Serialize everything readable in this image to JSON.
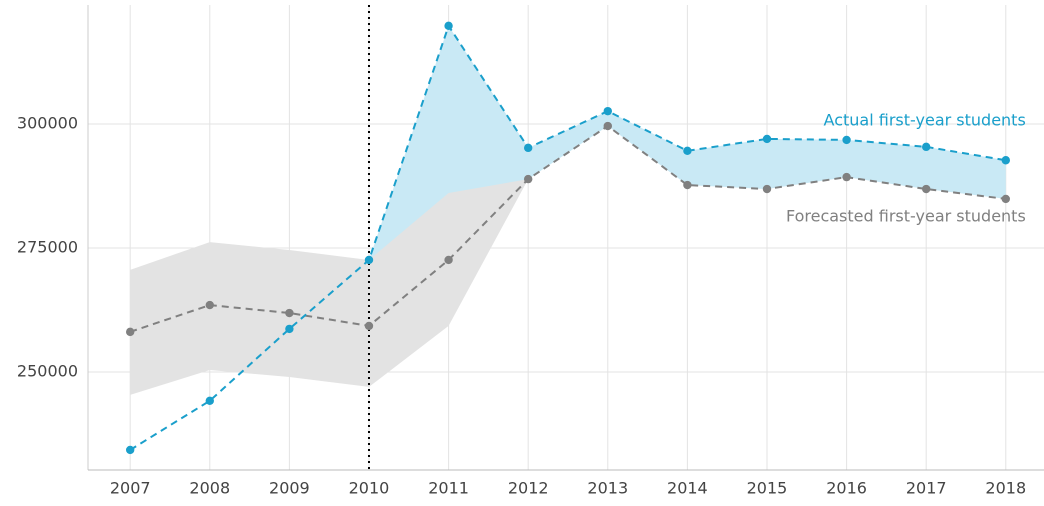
{
  "chart_data": {
    "type": "line",
    "x": [
      2007,
      2008,
      2009,
      2010,
      2011,
      2012,
      2013,
      2014,
      2015,
      2016,
      2017,
      2018
    ],
    "series": [
      {
        "name": "Actual first-year students",
        "color": "#1a9fcb",
        "values": [
          234300,
          244200,
          258700,
          272600,
          319800,
          295200,
          302600,
          294600,
          297000,
          296800,
          295400,
          292700
        ]
      },
      {
        "name": "Forecasted first-year students",
        "color": "#808080",
        "values": [
          258100,
          263500,
          261900,
          259300,
          272600,
          288900,
          299600,
          287700,
          286900,
          289300,
          286900,
          284900
        ]
      }
    ],
    "band": {
      "color": "#e3e3e3",
      "upper": [
        270600,
        276200,
        274600,
        272600,
        286100,
        288900,
        null,
        null,
        null,
        null,
        null,
        null
      ],
      "lower": [
        245400,
        250400,
        249000,
        247000,
        259300,
        288900,
        null,
        null,
        null,
        null,
        null,
        null
      ]
    },
    "difference_color": "#c9e9f5",
    "vline": 2010,
    "xlim": [
      2006.47,
      2018.48
    ],
    "xticks": [
      2007,
      2008,
      2009,
      2010,
      2011,
      2012,
      2013,
      2014,
      2015,
      2016,
      2017,
      2018
    ],
    "ylim": [
      230250,
      324000
    ],
    "yticks": [
      250000,
      275000,
      300000
    ],
    "grid": true
  }
}
